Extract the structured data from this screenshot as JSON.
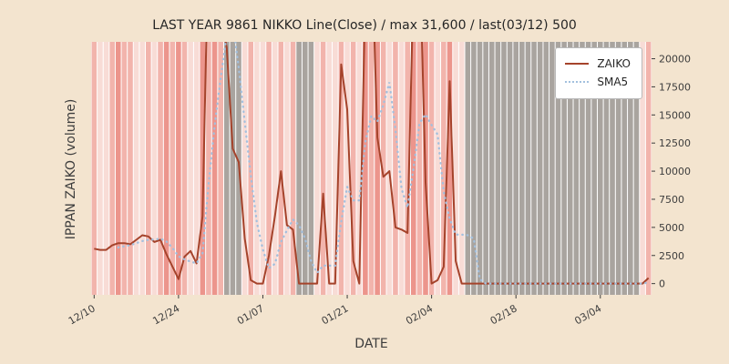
{
  "figure": {
    "title": "LAST YEAR 9861 NIKKO Line(Close) / max 31,600 / last(03/12) 500",
    "xlabel": "DATE",
    "ylabel": "IPPAN ZAIKO (volume)",
    "background": "#f3e4cf",
    "plot_background": "#ffffff"
  },
  "legend": {
    "entries": [
      {
        "label": "ZAIKO",
        "style": "solid",
        "color": "#a5432b"
      },
      {
        "label": "SMA5",
        "style": "dotted",
        "color": "#a3c0de"
      }
    ]
  },
  "chart_data": {
    "type": "line",
    "title": "LAST YEAR 9861 NIKKO Line(Close) / max 31,600 / last(03/12) 500",
    "xlabel": "DATE",
    "ylabel": "IPPAN ZAIKO (volume)",
    "ylim": [
      -1000,
      21500
    ],
    "yticks": [
      0,
      2500,
      5000,
      7500,
      10000,
      12500,
      15000,
      17500,
      20000
    ],
    "xticks": [
      "12/10",
      "12/24",
      "01/07",
      "01/21",
      "02/04",
      "02/18",
      "03/04"
    ],
    "legend_position": "upper right",
    "grid": false,
    "dates": [
      "12/10",
      "12/11",
      "12/12",
      "12/13",
      "12/14",
      "12/15",
      "12/16",
      "12/17",
      "12/18",
      "12/19",
      "12/20",
      "12/21",
      "12/22",
      "12/23",
      "12/24",
      "12/25",
      "12/26",
      "12/27",
      "12/28",
      "12/29",
      "12/30",
      "12/31",
      "01/01",
      "01/02",
      "01/03",
      "01/04",
      "01/05",
      "01/06",
      "01/07",
      "01/08",
      "01/09",
      "01/10",
      "01/11",
      "01/12",
      "01/13",
      "01/14",
      "01/15",
      "01/16",
      "01/17",
      "01/18",
      "01/19",
      "01/20",
      "01/21",
      "01/22",
      "01/23",
      "01/24",
      "01/25",
      "01/26",
      "01/27",
      "01/28",
      "01/29",
      "01/30",
      "01/31",
      "02/01",
      "02/02",
      "02/03",
      "02/04",
      "02/05",
      "02/06",
      "02/07",
      "02/08",
      "02/09",
      "02/10",
      "02/11",
      "02/12",
      "02/13",
      "02/14",
      "02/15",
      "02/16",
      "02/17",
      "02/18",
      "02/19",
      "02/20",
      "02/21",
      "02/22",
      "02/23",
      "02/24",
      "02/25",
      "02/26",
      "02/27",
      "02/28",
      "03/01",
      "03/02",
      "03/03",
      "03/04",
      "03/05",
      "03/06",
      "03/07",
      "03/08",
      "03/09",
      "03/10",
      "03/11",
      "03/12"
    ],
    "series": [
      {
        "name": "ZAIKO",
        "style": "solid",
        "color": "#a5432b",
        "values": [
          3100,
          3000,
          3000,
          3400,
          3600,
          3600,
          3500,
          3900,
          4300,
          4200,
          3700,
          3900,
          2600,
          1500,
          400,
          2400,
          2900,
          1800,
          6000,
          31600,
          28000,
          24000,
          21000,
          12000,
          10800,
          4000,
          300,
          0,
          0,
          2500,
          6000,
          10000,
          5200,
          4800,
          0,
          0,
          0,
          0,
          8000,
          0,
          0,
          19500,
          15500,
          2000,
          0,
          26000,
          31000,
          13000,
          9500,
          10000,
          5000,
          4800,
          4500,
          27000,
          30000,
          9000,
          0,
          300,
          1500,
          18000,
          2000,
          0,
          0,
          0,
          0,
          0,
          0,
          0,
          0,
          0,
          0,
          0,
          0,
          0,
          0,
          0,
          0,
          0,
          0,
          0,
          0,
          0,
          0,
          0,
          0,
          0,
          0,
          0,
          0,
          0,
          0,
          0,
          500
        ]
      },
      {
        "name": "SMA5",
        "style": "dotted",
        "color": "#a3c0de",
        "derived": "moving_average_of_ZAIKO",
        "window": 5
      }
    ],
    "band_palette": {
      "p": "#f8dcd6",
      "s": "#f2b4ac",
      "r": "#ec958c",
      "g": "#a9a49f"
    },
    "band_colors": [
      "s",
      "p",
      "p",
      "s",
      "r",
      "s",
      "s",
      "p",
      "p",
      "s",
      "p",
      "s",
      "r",
      "s",
      "r",
      "s",
      "p",
      "p",
      "r",
      "s",
      "r",
      "s",
      "g",
      "g",
      "g",
      "p",
      "s",
      "p",
      "p",
      "s",
      "p",
      "s",
      "p",
      "s",
      "g",
      "g",
      "g",
      "p",
      "s",
      "p",
      "p",
      "s",
      "p",
      "s",
      "p",
      "r",
      "s",
      "r",
      "s",
      "p",
      "s",
      "p",
      "s",
      "r",
      "s",
      "r",
      "s",
      "p",
      "s",
      "r",
      "p",
      "p",
      "g",
      "g",
      "g",
      "g",
      "g",
      "g",
      "g",
      "g",
      "g",
      "g",
      "g",
      "g",
      "g",
      "g",
      "g",
      "g",
      "g",
      "g",
      "g",
      "g",
      "g",
      "g",
      "g",
      "g",
      "g",
      "g",
      "g",
      "g",
      "g",
      "p",
      "s"
    ],
    "annotations": {
      "max_value_note": "max 31,600",
      "last_value_note": "last(03/12) 500"
    }
  }
}
